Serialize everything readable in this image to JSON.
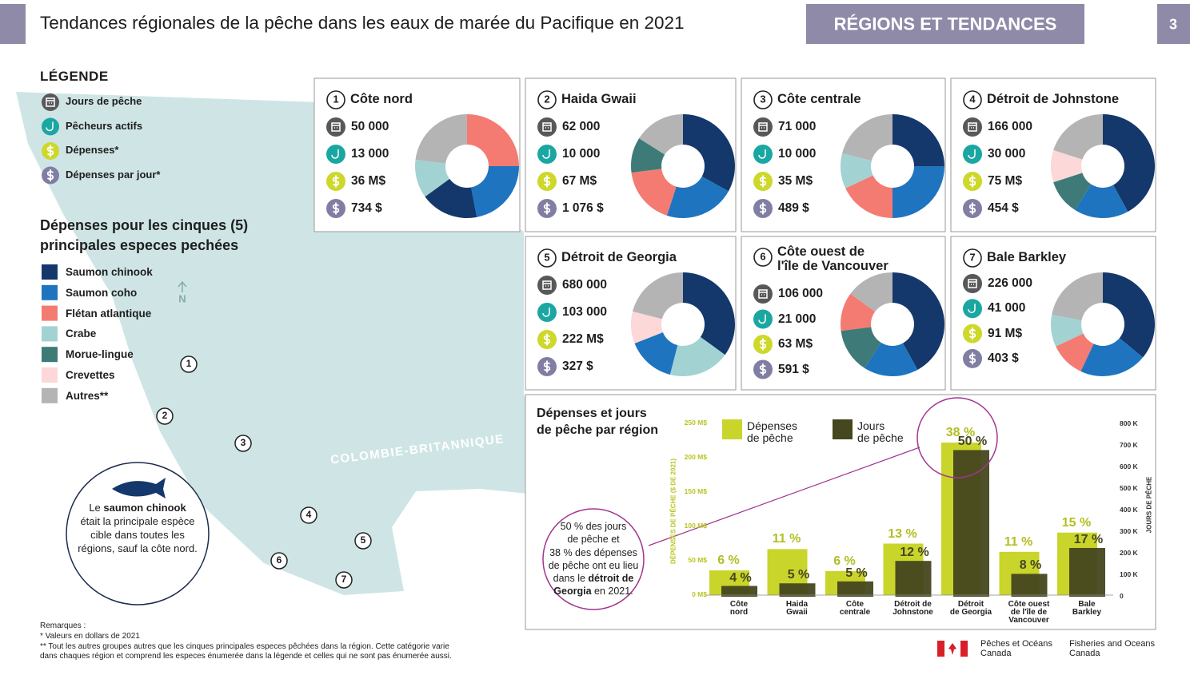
{
  "header": {
    "title": "Tendances régionales de la pêche dans les eaux de marée du Pacifique en 2021",
    "section": "RÉGIONS ET TENDANCES",
    "page": 3
  },
  "legend": {
    "title": "LÉGENDE",
    "items": [
      {
        "label": "Jours de pêche",
        "color": "#58585a"
      },
      {
        "label": "Pêcheurs actifs",
        "color": "#1ba7a1"
      },
      {
        "label": "Dépenses*",
        "color": "#cdd82a"
      },
      {
        "label": "Dépenses par jour*",
        "color": "#817ea4"
      }
    ]
  },
  "species": {
    "title": "Dépenses pour les cinques (5)\nprincipales especes pechées",
    "items": [
      {
        "label": "Saumon chinook",
        "color": "#14386b"
      },
      {
        "label": "Saumon coho",
        "color": "#1f74c0"
      },
      {
        "label": "Flétan atlantique",
        "color": "#f47b72"
      },
      {
        "label": "Crabe",
        "color": "#a3d2d2"
      },
      {
        "label": "Morue-lingue",
        "color": "#3e7b78"
      },
      {
        "label": "Crevettes",
        "color": "#fcd8d8"
      },
      {
        "label": "Autres**",
        "color": "#b4b4b4"
      }
    ]
  },
  "map": {
    "label": "COLOMBIE-BRITANNIQUE",
    "north": "N",
    "markers": [
      1,
      2,
      3,
      4,
      5,
      6,
      7
    ]
  },
  "callout": {
    "parts": [
      "Le ",
      "saumon chinook",
      "\nétait la principale espèce cible dans toutes les régions, sauf la côte nord."
    ]
  },
  "chart_data": [
    {
      "type": "pie",
      "number": 1,
      "title": "Côte nord",
      "stats": [
        "50 000",
        "13 000",
        "36 M$",
        "734 $"
      ],
      "values": [
        25,
        22,
        18,
        12,
        23
      ],
      "colors": [
        "#f47b72",
        "#1f74c0",
        "#14386b",
        "#a3d2d2",
        "#b4b4b4"
      ]
    },
    {
      "type": "pie",
      "number": 2,
      "title": "Haida Gwaii",
      "stats": [
        "62 000",
        "10 000",
        "67 M$",
        "1 076 $"
      ],
      "values": [
        33,
        22,
        18,
        11,
        16
      ],
      "colors": [
        "#14386b",
        "#1f74c0",
        "#f47b72",
        "#3e7b78",
        "#b4b4b4"
      ]
    },
    {
      "type": "pie",
      "number": 3,
      "title": "Côte centrale",
      "stats": [
        "71 000",
        "10 000",
        "35 M$",
        "489 $"
      ],
      "values": [
        25,
        25,
        18,
        11,
        21
      ],
      "colors": [
        "#14386b",
        "#1f74c0",
        "#f47b72",
        "#a3d2d2",
        "#b4b4b4"
      ]
    },
    {
      "type": "pie",
      "number": 4,
      "title": "Détroit de Johnstone",
      "stats": [
        "166 000",
        "30 000",
        "75 M$",
        "454 $"
      ],
      "values": [
        42,
        17,
        11,
        10,
        20
      ],
      "colors": [
        "#14386b",
        "#1f74c0",
        "#3e7b78",
        "#fcd8d8",
        "#b4b4b4"
      ]
    },
    {
      "type": "pie",
      "number": 5,
      "title": "Détroit de Georgia",
      "stats": [
        "680 000",
        "103 000",
        "222 M$",
        "327 $"
      ],
      "values": [
        35,
        19,
        15,
        10,
        21
      ],
      "colors": [
        "#14386b",
        "#a3d2d2",
        "#1f74c0",
        "#fcd8d8",
        "#b4b4b4"
      ]
    },
    {
      "type": "pie",
      "number": 6,
      "title": "Côte ouest de\nl'île de Vancouver",
      "stats": [
        "106 000",
        "21 000",
        "63 M$",
        "591 $"
      ],
      "values": [
        42,
        17,
        14,
        12,
        15
      ],
      "colors": [
        "#14386b",
        "#1f74c0",
        "#3e7b78",
        "#f47b72",
        "#b4b4b4"
      ]
    },
    {
      "type": "pie",
      "number": 7,
      "title": "Bale Barkley",
      "stats": [
        "226 000",
        "41 000",
        "91 M$",
        "403 $"
      ],
      "values": [
        36,
        21,
        11,
        10,
        22
      ],
      "colors": [
        "#14386b",
        "#1f74c0",
        "#f47b72",
        "#a3d2d2",
        "#b4b4b4"
      ]
    },
    {
      "type": "bar",
      "title": "Dépenses et jours\nde pêche par région",
      "categories": [
        "Côte\nnord",
        "Haida\nGwaii",
        "Côte\ncentrale",
        "Détroit de\nJohnstone",
        "Détroit\nde Georgia",
        "Côte ouest\nde l'île de\nVancouver",
        "Bale\nBarkley"
      ],
      "series": [
        {
          "name": "Dépenses\nde pêche",
          "color": "#c9d52a",
          "values": [
            36,
            67,
            35,
            75,
            222,
            63,
            91
          ],
          "percent_labels": [
            "6 %",
            "11 %",
            "6 %",
            "13 %",
            "38 %",
            "11 %",
            "15 %"
          ]
        },
        {
          "name": "Jours\nde pêche",
          "color": "#46461f",
          "axis": "y2",
          "values": [
            50000,
            62000,
            71000,
            166000,
            680000,
            106000,
            226000
          ],
          "percent_labels": [
            "4 %",
            "5 %",
            "5 %",
            "12 %",
            "50 %",
            "8 %",
            "17 %"
          ]
        }
      ],
      "ylabel": "DÉPENSES DE PÊCHE ($ DE 2021)",
      "y2label": "JOURS DE PÊCHE",
      "ylim": [
        0,
        250
      ],
      "yticks": [
        {
          "value": 0,
          "label": "0 M$"
        },
        {
          "value": 50,
          "label": "50 M$"
        },
        {
          "value": 100,
          "label": "100 M$"
        },
        {
          "value": 150,
          "label": "150 M$"
        },
        {
          "value": 200,
          "label": "200 M$"
        },
        {
          "value": 250,
          "label": "250 M$"
        }
      ],
      "y2lim": [
        0,
        800000
      ],
      "y2ticks": [
        0,
        {
          "value": 100000,
          "label": "100 K"
        },
        {
          "value": 200000,
          "label": "200 K"
        },
        {
          "value": 300000,
          "label": "300 K"
        },
        {
          "value": 400000,
          "label": "400 K"
        },
        {
          "value": 500000,
          "label": "500 K"
        },
        {
          "value": 600000,
          "label": "600 K"
        },
        {
          "value": 700000,
          "label": "700 K"
        },
        {
          "value": 800000,
          "label": "800 K"
        }
      ],
      "annotation": {
        "parts": [
          "50 % des jours\nde pêche et\n38 % des dépenses\nde pêche ont eu lieu\ndans le ",
          "détroit de\nGeorgia",
          " en 2021."
        ]
      }
    }
  ],
  "notes": {
    "title": "Remarques :",
    "lines": [
      "* Valeurs en dollars de 2021",
      "** Tout les autres groupes autres que les cinques principales especes pêchées dans la région. Cette catégorie varie\ndans chaques région et comprend les especes énumerée dans la légende et celles qui ne sont pas énumerée aussi."
    ]
  },
  "footer": {
    "fr": "Pêches et Océans\nCanada",
    "en": "Fisheries and Oceans\nCanada"
  }
}
